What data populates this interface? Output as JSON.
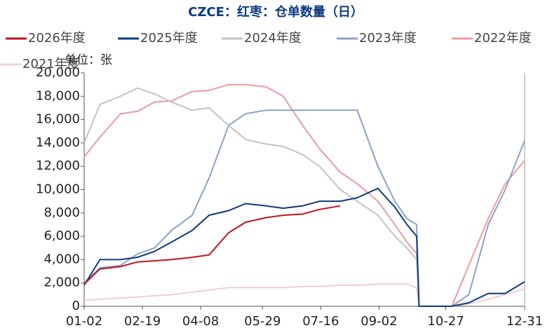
{
  "chart_data": {
    "type": "line",
    "title": "CZCE：红枣：仓单数量（日）",
    "unit_label": "单位：张",
    "x": [
      "01-02",
      "01-15",
      "02-01",
      "02-15",
      "03-01",
      "03-15",
      "04-01",
      "04-15",
      "05-01",
      "05-15",
      "06-01",
      "06-15",
      "07-01",
      "07-15",
      "08-01",
      "08-15",
      "09-01",
      "09-15",
      "09-25",
      "10-03",
      "10-05",
      "10-15",
      "11-01",
      "11-15",
      "12-01",
      "12-15",
      "12-31"
    ],
    "xlim": [
      "01-02",
      "12-31"
    ],
    "xticks": [
      "01-02",
      "02-19",
      "04-08",
      "05-29",
      "07-16",
      "09-02",
      "10-27",
      "12-31"
    ],
    "ylim": [
      0,
      20000
    ],
    "yticks": [
      0,
      {
        "value": 2000,
        "label": "2,000"
      },
      {
        "value": 4000,
        "label": "4,000"
      },
      {
        "value": 6000,
        "label": "6,000"
      },
      {
        "value": 8000,
        "label": "8,000"
      },
      {
        "value": 10000,
        "label": "10,000"
      },
      {
        "value": 12000,
        "label": "12,000"
      },
      {
        "value": 14000,
        "label": "14,000"
      },
      {
        "value": 16000,
        "label": "16,000"
      },
      {
        "value": 18000,
        "label": "18,000"
      },
      {
        "value": 20000,
        "label": "20,000"
      }
    ],
    "grid": false,
    "series": [
      {
        "name": "2026年度",
        "color": "#c0141e",
        "values": [
          1900,
          3200,
          3400,
          3800,
          3900,
          4000,
          4200,
          4400,
          6300,
          7200,
          7600,
          7800,
          7900,
          8300,
          8600,
          null,
          null,
          null,
          null,
          null,
          null,
          null,
          null,
          null,
          null,
          null,
          null
        ]
      },
      {
        "name": "2025年度",
        "color": "#0d3a7e",
        "values": [
          1800,
          4000,
          4000,
          4200,
          4700,
          5500,
          6500,
          7800,
          8200,
          8800,
          8600,
          8400,
          8600,
          9000,
          9000,
          9300,
          10100,
          8500,
          7000,
          6000,
          0,
          0,
          0,
          300,
          1100,
          1100,
          2100
        ]
      },
      {
        "name": "2024年度",
        "color": "#c3c3c3",
        "values": [
          14000,
          17300,
          18000,
          18700,
          18200,
          17500,
          16800,
          17000,
          15500,
          14300,
          13900,
          13700,
          13000,
          12000,
          10000,
          9000,
          7800,
          6000,
          5000,
          4000,
          0,
          0,
          0,
          null,
          null,
          null,
          null
        ]
      },
      {
        "name": "2023年度",
        "color": "#8aa3c8",
        "values": [
          2000,
          3300,
          3500,
          4500,
          5000,
          6500,
          7800,
          11000,
          15500,
          16500,
          16800,
          16800,
          16800,
          16800,
          16800,
          16800,
          12000,
          9000,
          7500,
          7000,
          0,
          0,
          0,
          1000,
          7000,
          10000,
          14200
        ]
      },
      {
        "name": "2022年度",
        "color": "#ee9aa2",
        "values": [
          12800,
          14500,
          16500,
          16700,
          17500,
          17600,
          18400,
          18500,
          19000,
          19000,
          18800,
          18000,
          15500,
          13500,
          11500,
          10500,
          9000,
          7000,
          5500,
          4500,
          0,
          0,
          0,
          3500,
          7500,
          10500,
          12500
        ]
      },
      {
        "name": "2021年度",
        "color": "#f0cfd4",
        "values": [
          500,
          600,
          700,
          800,
          900,
          1000,
          1200,
          1400,
          1600,
          1600,
          1600,
          1600,
          1700,
          1700,
          1800,
          1800,
          1900,
          1900,
          1900,
          1600,
          0,
          0,
          0,
          200,
          600,
          1000,
          1500
        ]
      }
    ]
  }
}
